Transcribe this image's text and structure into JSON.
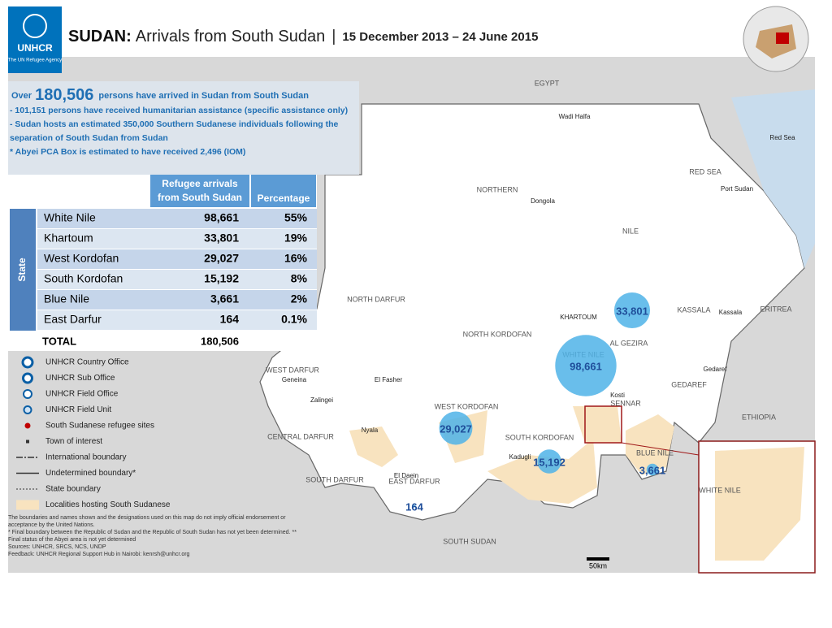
{
  "header": {
    "logo": "UNHCR",
    "logo_sub": "The UN Refugee Agency",
    "country": "SUDAN:",
    "title": "Arrivals from South Sudan",
    "separator": "|",
    "dates": "15 December 2013 – 24 June 2015"
  },
  "summary": {
    "over": "Over",
    "total": "180,506",
    "lead": "persons have arrived in Sudan from South Sudan",
    "bullets": [
      "- 101,151 persons have received humanitarian assistance (specific assistance only)",
      "- Sudan hosts an estimated 350,000 Southern Sudanese individuals following the separation of South Sudan from Sudan",
      "* Abyei PCA Box is estimated to have received 2,496 (IOM)"
    ]
  },
  "table": {
    "headers": [
      "Refugee arrivals from South Sudan",
      "Percentage"
    ],
    "row_group": "State",
    "rows": [
      [
        "White Nile",
        "98,661",
        "55%"
      ],
      [
        "Khartoum",
        "33,801",
        "19%"
      ],
      [
        "West Kordofan",
        "29,027",
        "16%"
      ],
      [
        "South Kordofan",
        "15,192",
        "8%"
      ],
      [
        "Blue Nile",
        "3,661",
        "2%"
      ],
      [
        "East Darfur",
        "164",
        "0.1%"
      ]
    ],
    "total": [
      "TOTAL",
      "180,506"
    ]
  },
  "legend": [
    "UNHCR Country Office",
    "UNHCR Sub Office",
    "UNHCR Field Office",
    "UNHCR Field Unit",
    "South Sudanese refugee sites",
    "Town of interest",
    "International boundary",
    "Undetermined boundary*",
    "State boundary",
    "Localities hosting South Sudanese"
  ],
  "footnotes": [
    "The boundaries and names shown and the designations used on this map do not imply official endorsement or acceptance by the United Nations.",
    "* Final boundary between the Republic of Sudan and the Republic of South Sudan has not yet been determined. ** Final status of the Abyei area is not yet determined",
    "Sources: UNHCR, SRCS, NCS, UNDP",
    "Feedback: UNHCR Regional Support Hub in Nairobi: kenrsh@unhcr.org"
  ],
  "map": {
    "labels": [
      "EGYPT",
      "RED SEA",
      "NORTHERN",
      "NILE",
      "KHARTOUM",
      "KASSALA",
      "ERITREA",
      "NORTH DARFUR",
      "NORTH KORDOFAN",
      "AL GEZIRA",
      "GEDAREF",
      "SENNAR",
      "ETHIOPIA",
      "WEST DARFUR",
      "CENTRAL DARFUR",
      "SOUTH DARFUR",
      "EAST DARFUR",
      "WEST KORDOFAN",
      "SOUTH KORDOFAN",
      "BLUE NILE",
      "WHITE NILE",
      "SOUTH SUDAN",
      "Red Sea",
      "Port Sudan",
      "Dongola",
      "Wadi Halfa",
      "El Fasher",
      "Kosti",
      "Kadugli",
      "Nyala",
      "Zalingei",
      "Geneina",
      "Kassala",
      "Gedaref",
      "El Daein",
      "WHITE NILE"
    ],
    "bubbles": [
      {
        "value": 98661,
        "label": "98,661"
      },
      {
        "value": 33801,
        "label": "33,801"
      },
      {
        "value": 29027,
        "label": "29,027"
      },
      {
        "value": 15192,
        "label": "15,192"
      },
      {
        "value": 3661,
        "label": "3,661"
      },
      {
        "value": 164,
        "label": "164"
      }
    ],
    "scale": "50km"
  }
}
